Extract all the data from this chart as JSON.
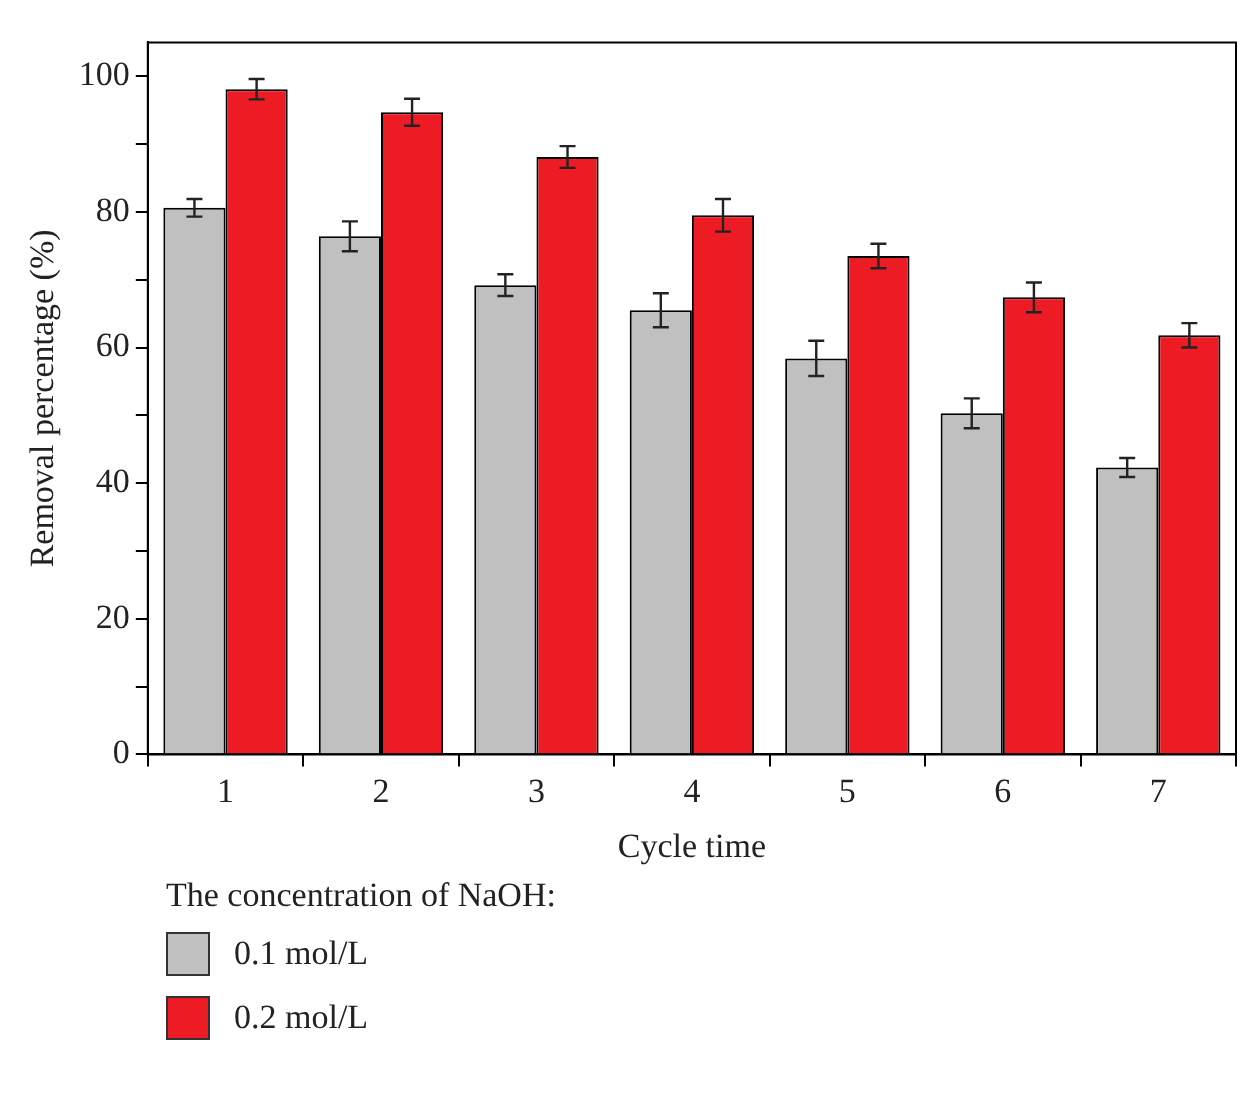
{
  "chart_data": {
    "type": "bar",
    "xlabel": "Cycle time",
    "ylabel": "Removal percentage (%)",
    "legend_title": "The concentration of NaOH:",
    "categories": [
      "1",
      "2",
      "3",
      "4",
      "5",
      "6",
      "7"
    ],
    "series": [
      {
        "name": "0.1 mol/L",
        "color": "#c0c0c0",
        "values": [
          80.6,
          76.4,
          69.2,
          65.5,
          58.4,
          50.3,
          42.3
        ],
        "errors": [
          1.3,
          2.2,
          1.6,
          2.5,
          2.6,
          2.2,
          1.4
        ]
      },
      {
        "name": "0.2 mol/L",
        "color": "#ed1c24",
        "values": [
          98.1,
          94.7,
          88.1,
          79.5,
          73.5,
          67.4,
          61.8
        ],
        "errors": [
          1.5,
          2.0,
          1.6,
          2.4,
          1.8,
          2.2,
          1.8
        ]
      }
    ],
    "ylim": [
      0,
      105
    ],
    "yticks": [
      0,
      {
        "value": 10,
        "label": null
      },
      20,
      {
        "value": 30,
        "label": null
      },
      40,
      {
        "value": 50,
        "label": null
      },
      60,
      {
        "value": 70,
        "label": null
      },
      80,
      {
        "value": 90,
        "label": null
      },
      100
    ],
    "grid": false,
    "legend": "bottom"
  }
}
